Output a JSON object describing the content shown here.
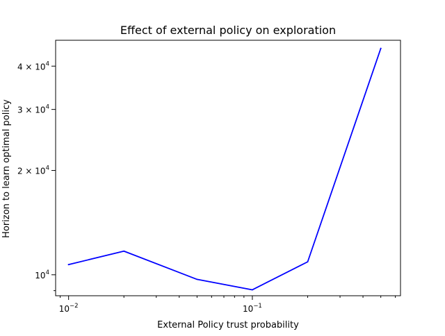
{
  "chart_data": {
    "type": "line",
    "title": "Effect of external policy on exploration",
    "xlabel": "External Policy trust probability",
    "ylabel": "Horizon to learn optimal policy",
    "xscale": "log",
    "yscale": "log",
    "xlim": [
      0.0085,
      0.64
    ],
    "ylim": [
      8700,
      47500
    ],
    "grid": false,
    "series": [
      {
        "color": "#0000ff",
        "x": [
          0.01,
          0.02,
          0.05,
          0.1,
          0.2,
          0.5
        ],
        "y": [
          10700,
          11700,
          9700,
          9050,
          10900,
          45000
        ]
      }
    ],
    "x_ticks": [
      {
        "value": 0.01,
        "base": "10",
        "exp": "−2"
      },
      {
        "value": 0.1,
        "base": "10",
        "exp": "−1"
      }
    ],
    "x_minor_ticks": [
      0.009,
      0.02,
      0.03,
      0.04,
      0.05,
      0.06,
      0.07,
      0.08,
      0.09,
      0.2,
      0.3,
      0.4,
      0.5,
      0.6
    ],
    "y_ticks": [
      {
        "value": 10000,
        "mantissa": "",
        "base": "10",
        "exp": "4"
      },
      {
        "value": 20000,
        "mantissa": "2 × ",
        "base": "10",
        "exp": "4"
      },
      {
        "value": 30000,
        "mantissa": "3 × ",
        "base": "10",
        "exp": "4"
      },
      {
        "value": 40000,
        "mantissa": "4 × ",
        "base": "10",
        "exp": "4"
      }
    ],
    "y_minor_ticks": [
      9000
    ]
  }
}
